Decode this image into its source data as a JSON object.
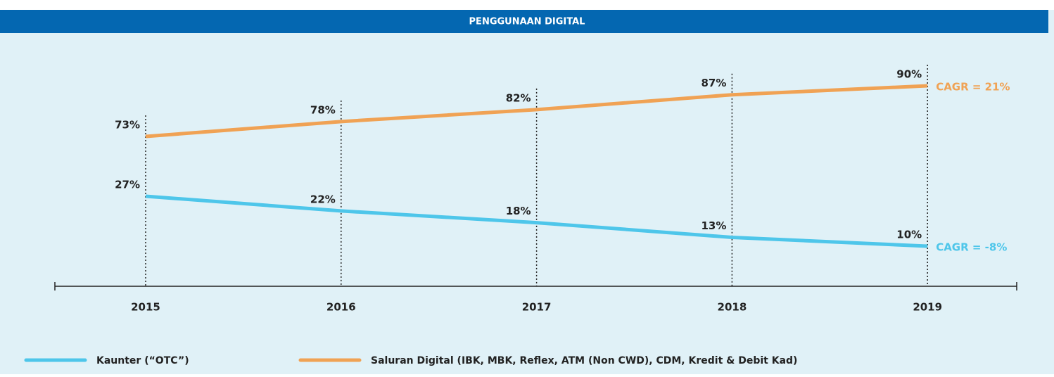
{
  "chart_data": {
    "type": "line",
    "title": "PENGGUNAAN DIGITAL",
    "categories": [
      "2015",
      "2016",
      "2017",
      "2018",
      "2019"
    ],
    "series": [
      {
        "name": "Kaunter (“OTC”)",
        "color": "#4ec6ea",
        "values": [
          27,
          22,
          18,
          13,
          10
        ],
        "value_labels": [
          "27%",
          "22%",
          "18%",
          "13%",
          "10%"
        ],
        "annotation": "CAGR = -8%"
      },
      {
        "name": "Saluran Digital (IBK, MBK, Reflex, ATM (Non CWD), CDM, Kredit & Debit Kad)",
        "color": "#f0a254",
        "values": [
          73,
          78,
          82,
          87,
          90
        ],
        "value_labels": [
          "73%",
          "78%",
          "82%",
          "87%",
          "90%"
        ],
        "annotation": "CAGR = 21%"
      }
    ],
    "grid": false
  }
}
